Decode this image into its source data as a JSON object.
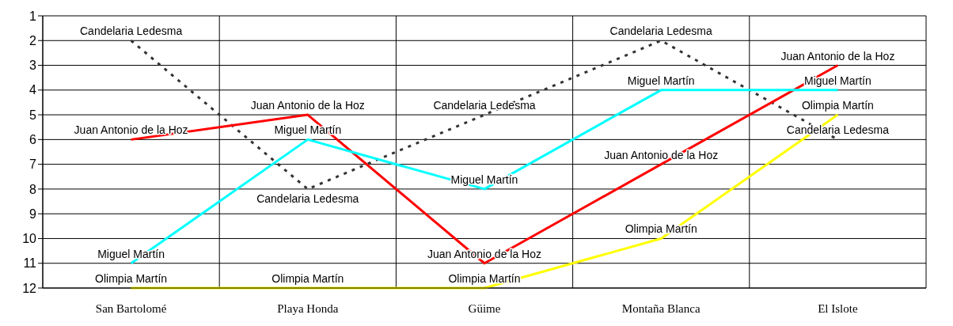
{
  "chart_data": {
    "type": "line",
    "categories": [
      "San Bartolomé",
      "Playa Honda",
      "Güime",
      "Montaña Blanca",
      "El Islote"
    ],
    "series": [
      {
        "name": "Candelaria Ledesma",
        "color": "#333333",
        "line_style": "dotted",
        "values": [
          2,
          8,
          5,
          2,
          6
        ]
      },
      {
        "name": "Juan Antonio de la Hoz",
        "color": "#ff0000",
        "values": [
          6,
          5,
          11,
          7,
          3
        ]
      },
      {
        "name": "Miguel Martín",
        "color": "#00ffff",
        "values": [
          11,
          6,
          8,
          4,
          4
        ]
      },
      {
        "name": "Olimpia Martín",
        "color": "#ffff00",
        "values": [
          12,
          12,
          12,
          10,
          5
        ]
      }
    ],
    "ylim": [
      12,
      1
    ],
    "yticks": [
      1,
      2,
      3,
      4,
      5,
      6,
      7,
      8,
      9,
      10,
      11,
      12
    ],
    "grid": true,
    "legend": false,
    "marker": "none",
    "line_style": "solid"
  }
}
